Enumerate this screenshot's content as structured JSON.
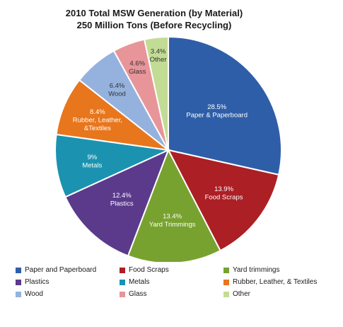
{
  "chart_data": {
    "type": "pie",
    "title": "2010 Total MSW Generation (by Material)",
    "subtitle": "250 Million Tons (Before Recycling)",
    "slices": [
      {
        "label_lines": [
          "28.5%",
          "Paper & Paperboard"
        ],
        "value": 28.5,
        "color": "#2f5ea8",
        "dark_text": false
      },
      {
        "label_lines": [
          "13.9%",
          "Food Scraps"
        ],
        "value": 13.9,
        "color": "#ac1f25",
        "dark_text": false
      },
      {
        "label_lines": [
          "13.4%",
          "Yard Trimmings"
        ],
        "value": 13.4,
        "color": "#78a22f",
        "dark_text": false
      },
      {
        "label_lines": [
          "12.4%",
          "Plastics"
        ],
        "value": 12.4,
        "color": "#5b3a8c",
        "dark_text": false
      },
      {
        "label_lines": [
          "9%",
          "Metals"
        ],
        "value": 9,
        "color": "#1b93b0",
        "dark_text": false
      },
      {
        "label_lines": [
          "8.4%",
          "Rubber, Leather,",
          "&Textiles"
        ],
        "value": 8.4,
        "color": "#e8761c",
        "dark_text": false
      },
      {
        "label_lines": [
          "6.4%",
          "Wood"
        ],
        "value": 6.4,
        "color": "#95b2de",
        "dark_text": true
      },
      {
        "label_lines": [
          "4.6%",
          "Glass"
        ],
        "value": 4.6,
        "color": "#e79599",
        "dark_text": true
      },
      {
        "label_lines": [
          "3.4%",
          "Other"
        ],
        "value": 3.4,
        "color": "#c2dc95",
        "dark_text": true
      }
    ],
    "legend": {
      "placement": "bottom",
      "rows": [
        [
          {
            "label": "Paper and Paperboard",
            "color": "#2f5ea8"
          },
          {
            "label": "Food Scraps",
            "color": "#ac1f25"
          },
          {
            "label": "Yard trimmings",
            "color": "#78a22f"
          }
        ],
        [
          {
            "label": "Plastics",
            "color": "#5b3a8c"
          },
          {
            "label": "Metals",
            "color": "#1b93b0"
          },
          {
            "label": "Rubber, Leather, & Textiles",
            "color": "#e8761c"
          }
        ],
        [
          {
            "label": "Wood",
            "color": "#95b2de"
          },
          {
            "label": "Glass",
            "color": "#e79599"
          },
          {
            "label": "Other",
            "color": "#c2dc95"
          }
        ]
      ]
    }
  }
}
